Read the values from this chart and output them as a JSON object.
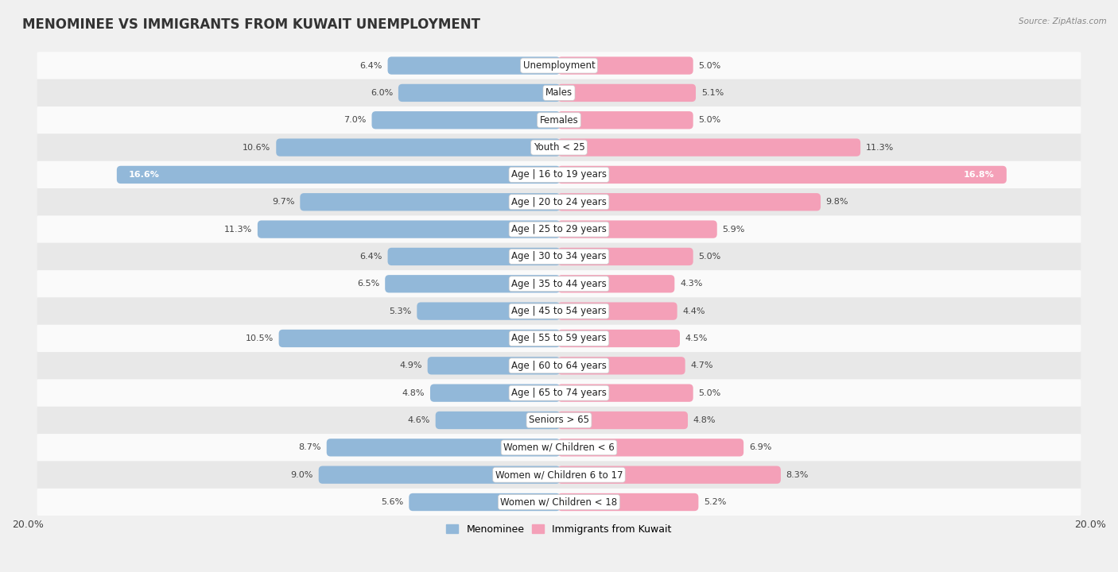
{
  "title": "MENOMINEE VS IMMIGRANTS FROM KUWAIT UNEMPLOYMENT",
  "source": "Source: ZipAtlas.com",
  "categories": [
    "Unemployment",
    "Males",
    "Females",
    "Youth < 25",
    "Age | 16 to 19 years",
    "Age | 20 to 24 years",
    "Age | 25 to 29 years",
    "Age | 30 to 34 years",
    "Age | 35 to 44 years",
    "Age | 45 to 54 years",
    "Age | 55 to 59 years",
    "Age | 60 to 64 years",
    "Age | 65 to 74 years",
    "Seniors > 65",
    "Women w/ Children < 6",
    "Women w/ Children 6 to 17",
    "Women w/ Children < 18"
  ],
  "menominee": [
    6.4,
    6.0,
    7.0,
    10.6,
    16.6,
    9.7,
    11.3,
    6.4,
    6.5,
    5.3,
    10.5,
    4.9,
    4.8,
    4.6,
    8.7,
    9.0,
    5.6
  ],
  "kuwait": [
    5.0,
    5.1,
    5.0,
    11.3,
    16.8,
    9.8,
    5.9,
    5.0,
    4.3,
    4.4,
    4.5,
    4.7,
    5.0,
    4.8,
    6.9,
    8.3,
    5.2
  ],
  "menominee_color": "#92b8d9",
  "kuwait_color": "#f4a0b8",
  "menominee_label": "Menominee",
  "kuwait_label": "Immigrants from Kuwait",
  "axis_limit": 20.0,
  "background_color": "#f0f0f0",
  "row_color_light": "#fafafa",
  "row_color_dark": "#e8e8e8",
  "title_fontsize": 12,
  "label_fontsize": 8.5,
  "value_fontsize": 8,
  "legend_fontsize": 9
}
